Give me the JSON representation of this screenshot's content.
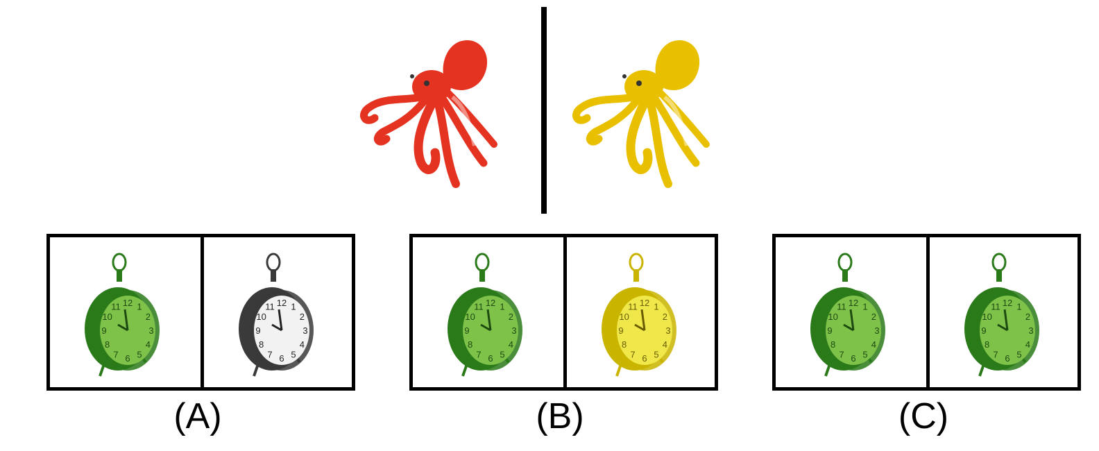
{
  "top": {
    "left_octopus_color": "#e53322",
    "right_octopus_color": "#e8c000"
  },
  "options": [
    {
      "label": "(A)",
      "left_clock": {
        "body": "#2a7a1a",
        "face": "#7ec24a",
        "ink": "#1d4a10"
      },
      "right_clock": {
        "body": "#3a3a3a",
        "face": "#f2f2f2",
        "ink": "#222222"
      }
    },
    {
      "label": "(B)",
      "left_clock": {
        "body": "#2a7a1a",
        "face": "#7ec24a",
        "ink": "#1d4a10"
      },
      "right_clock": {
        "body": "#c9b400",
        "face": "#f0e84a",
        "ink": "#6a5c00"
      }
    },
    {
      "label": "(C)",
      "left_clock": {
        "body": "#2a7a1a",
        "face": "#7ec24a",
        "ink": "#1d4a10"
      },
      "right_clock": {
        "body": "#2a7a1a",
        "face": "#7ec24a",
        "ink": "#1d4a10"
      }
    }
  ]
}
